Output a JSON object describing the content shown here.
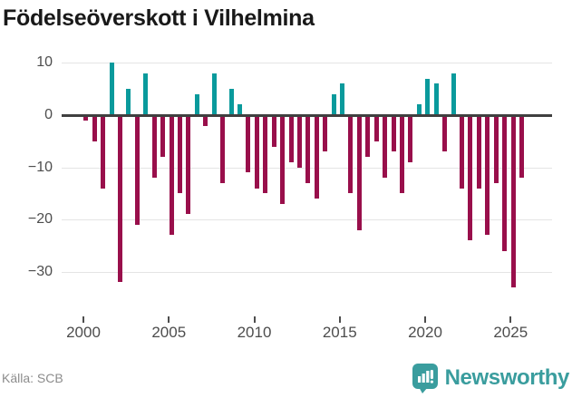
{
  "title": "Födelseöverskott i Vilhelmina",
  "source": "Källa: SCB",
  "brand": {
    "name": "Newsworthy",
    "color": "#3a9d9e",
    "icon": "bar-chart-badge-icon"
  },
  "colors": {
    "positive_bar": "#0a9a9c",
    "negative_bar": "#990f4b",
    "zero_line": "#404040",
    "gridline": "#e4e4e4",
    "axis_text": "#4d4d4d",
    "title_text": "#191919",
    "source_text": "#8c8c8c"
  },
  "chart_data": {
    "type": "bar",
    "title": "Födelseöverskott i Vilhelmina",
    "xlabel": "",
    "ylabel": "",
    "grid": "horizontal",
    "legend": "none",
    "period_unit": "half-year",
    "categories": [
      "2000H1",
      "2000H2",
      "2001H1",
      "2001H2",
      "2002H1",
      "2002H2",
      "2003H1",
      "2003H2",
      "2004H1",
      "2004H2",
      "2005H1",
      "2005H2",
      "2006H1",
      "2006H2",
      "2007H1",
      "2007H2",
      "2008H1",
      "2008H2",
      "2009H1",
      "2009H2",
      "2010H1",
      "2010H2",
      "2011H1",
      "2011H2",
      "2012H1",
      "2012H2",
      "2013H1",
      "2013H2",
      "2014H1",
      "2014H2",
      "2015H1",
      "2015H2",
      "2016H1",
      "2016H2",
      "2017H1",
      "2017H2",
      "2018H1",
      "2018H2",
      "2019H1",
      "2019H2",
      "2020H1",
      "2020H2",
      "2021H1",
      "2021H2",
      "2022H1",
      "2022H2",
      "2023H1",
      "2023H2",
      "2024H1",
      "2024H2",
      "2025H1",
      "2025H2"
    ],
    "values": [
      -1,
      -5,
      -14,
      10,
      -32,
      5,
      -21,
      8,
      -12,
      -8,
      -23,
      -15,
      -19,
      4,
      -2,
      8,
      -13,
      5,
      2,
      -11,
      -14,
      -15,
      -6,
      -17,
      -9,
      -10,
      -13,
      -16,
      -7,
      4,
      6,
      -15,
      -22,
      -8,
      -5,
      -12,
      -7,
      -15,
      -9,
      2,
      7,
      6,
      -7,
      8,
      -14,
      -24,
      -14,
      -23,
      -13,
      -26,
      -33,
      -12
    ],
    "xticks": {
      "values": [
        2000,
        2005,
        2010,
        2015,
        2020,
        2025
      ],
      "labels": [
        "2000",
        "2005",
        "2010",
        "2015",
        "2020",
        "2025"
      ]
    },
    "yticks": {
      "values": [
        10,
        0,
        -10,
        -20,
        -30
      ],
      "labels": [
        "10",
        "0",
        "−10",
        "−20",
        "−30"
      ]
    },
    "ylim": [
      -35,
      11.5
    ]
  }
}
